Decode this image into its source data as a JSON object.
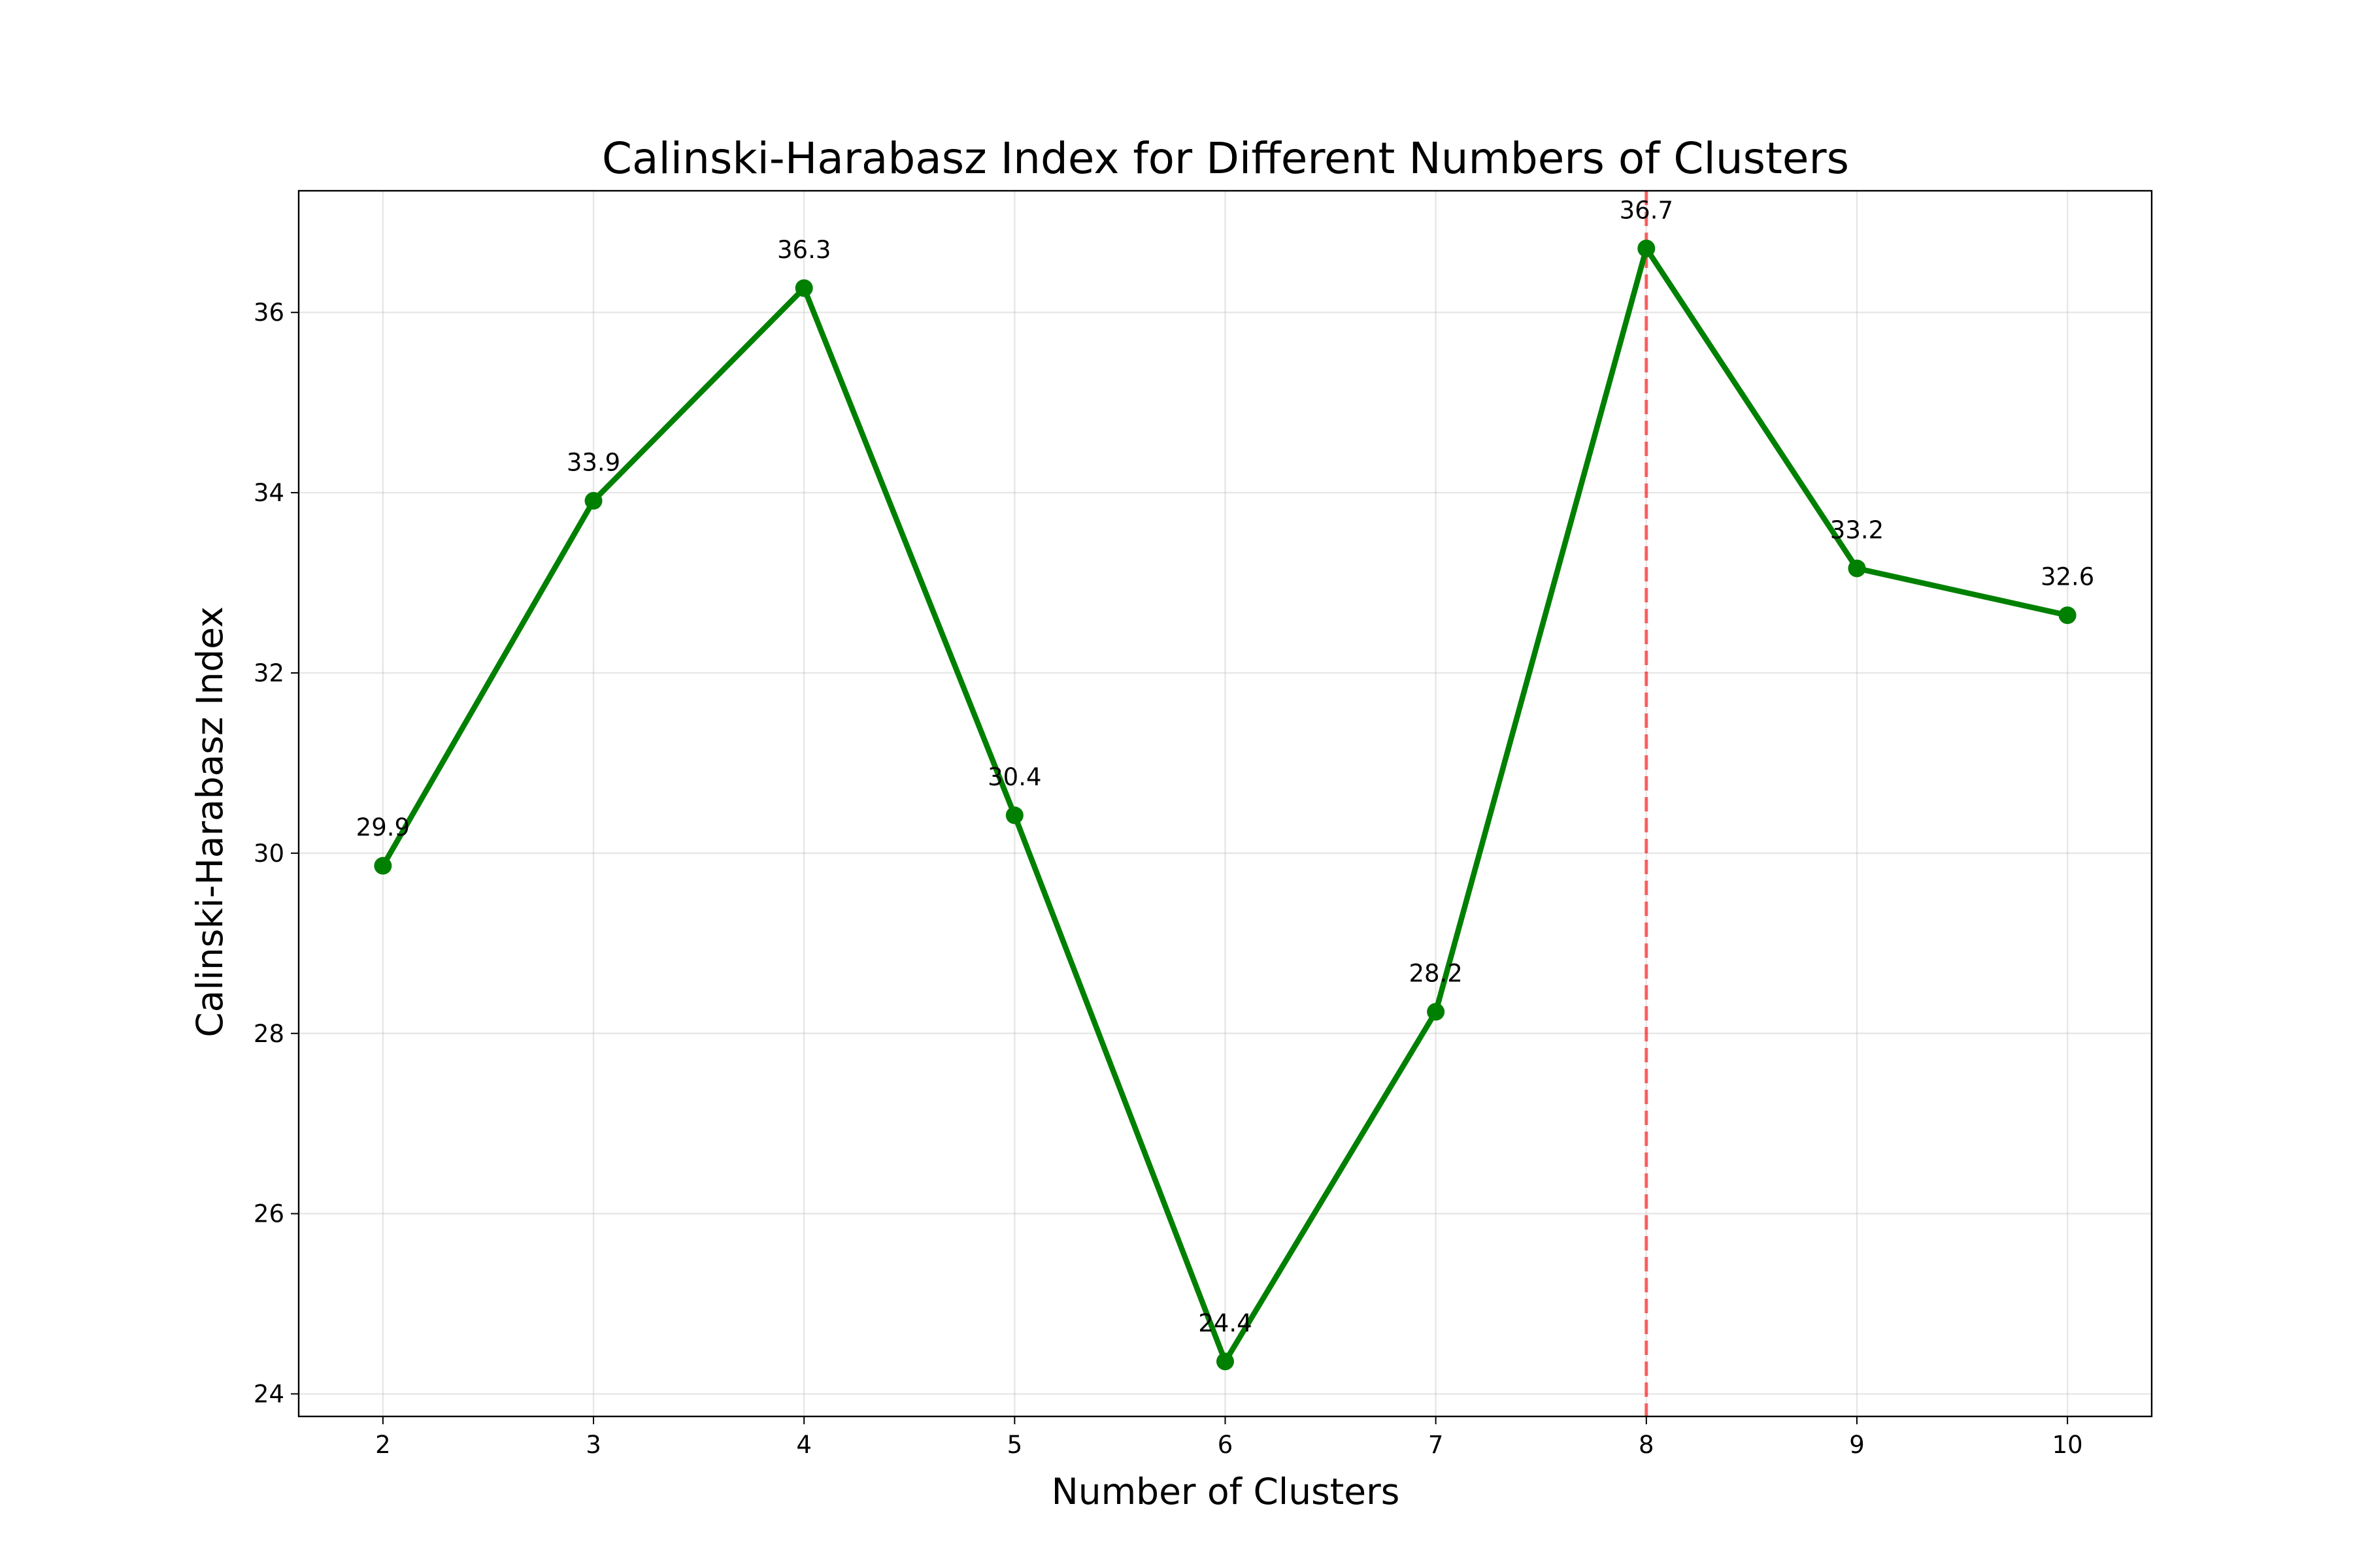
{
  "chart_data": {
    "type": "line",
    "title": "Calinski-Harabasz Index for Different Numbers of Clusters",
    "xlabel": "Number of Clusters",
    "ylabel": "Calinski-Harabasz Index",
    "x": [
      2,
      3,
      4,
      5,
      6,
      7,
      8,
      9,
      10
    ],
    "values": [
      29.86,
      33.91,
      36.27,
      30.42,
      24.36,
      28.24,
      36.71,
      33.16,
      32.64
    ],
    "data_labels": [
      "29.9",
      "33.9",
      "36.3",
      "30.4",
      "24.4",
      "28.2",
      "36.7",
      "33.2",
      "32.6"
    ],
    "xlim": [
      1.6,
      10.4
    ],
    "ylim": [
      23.75,
      37.35
    ],
    "x_ticks": [
      2,
      3,
      4,
      5,
      6,
      7,
      8,
      9,
      10
    ],
    "y_ticks": [
      24,
      26,
      28,
      30,
      32,
      34,
      36
    ],
    "grid": true,
    "marker": "circle",
    "line_color": "#008000",
    "reference_line": {
      "orientation": "vertical",
      "x": 8,
      "style": "dashed",
      "color": "#ff0000",
      "opacity": 0.6
    }
  }
}
